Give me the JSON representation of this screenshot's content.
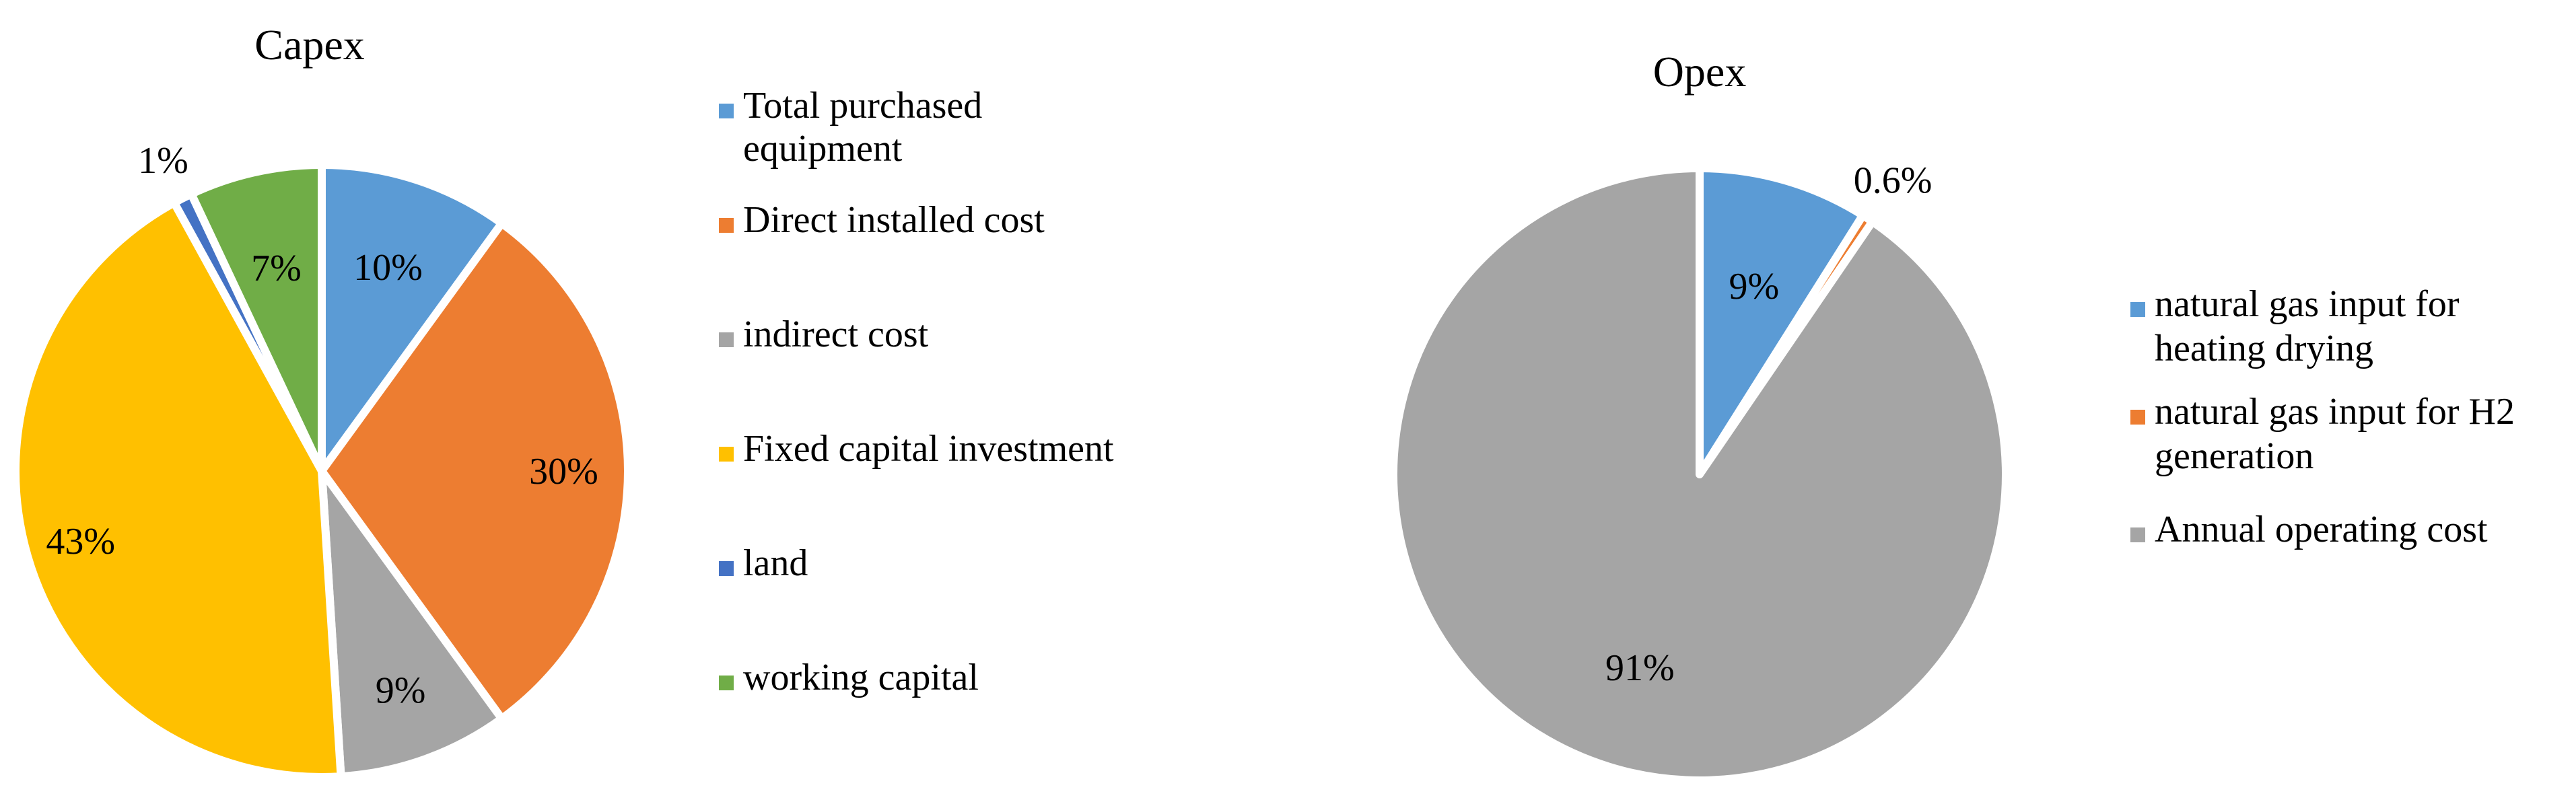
{
  "chart_data": [
    {
      "type": "pie",
      "title": "Capex",
      "categories": [
        "Total purchased equipment",
        "Direct installed cost",
        "indirect cost",
        "Fixed capital investment",
        "land",
        "working capital"
      ],
      "values": [
        10,
        30,
        9,
        43,
        1,
        7
      ],
      "data_labels": [
        "10%",
        "30%",
        "9%",
        "43%",
        "1%",
        "7%"
      ],
      "legend_lines": [
        [
          "Total purchased",
          "equipment"
        ],
        [
          "Direct installed cost"
        ],
        [
          "indirect cost"
        ],
        [
          "Fixed capital investment"
        ],
        [
          "land"
        ],
        [
          "working capital"
        ]
      ],
      "colors": [
        "#5B9BD5",
        "#ED7D31",
        "#A5A5A5",
        "#FFC000",
        "#4472C4",
        "#70AD47"
      ],
      "start_angle_deg": 0,
      "direction": "clockwise",
      "legend_position": "right"
    },
    {
      "type": "pie",
      "title": "Opex",
      "categories": [
        "natural gas input for heating drying",
        "natural gas input for H2 generation",
        "Annual operating cost"
      ],
      "values": [
        9,
        0.6,
        91
      ],
      "data_labels": [
        "9%",
        "0.6%",
        "91%"
      ],
      "legend_lines": [
        [
          "natural gas input for",
          "heating drying"
        ],
        [
          "natural gas input for H2",
          "generation"
        ],
        [
          "Annual operating cost"
        ]
      ],
      "colors": [
        "#5B9BD5",
        "#ED7D31",
        "#A5A5A5"
      ],
      "start_angle_deg": 0,
      "direction": "clockwise",
      "legend_position": "right"
    }
  ]
}
